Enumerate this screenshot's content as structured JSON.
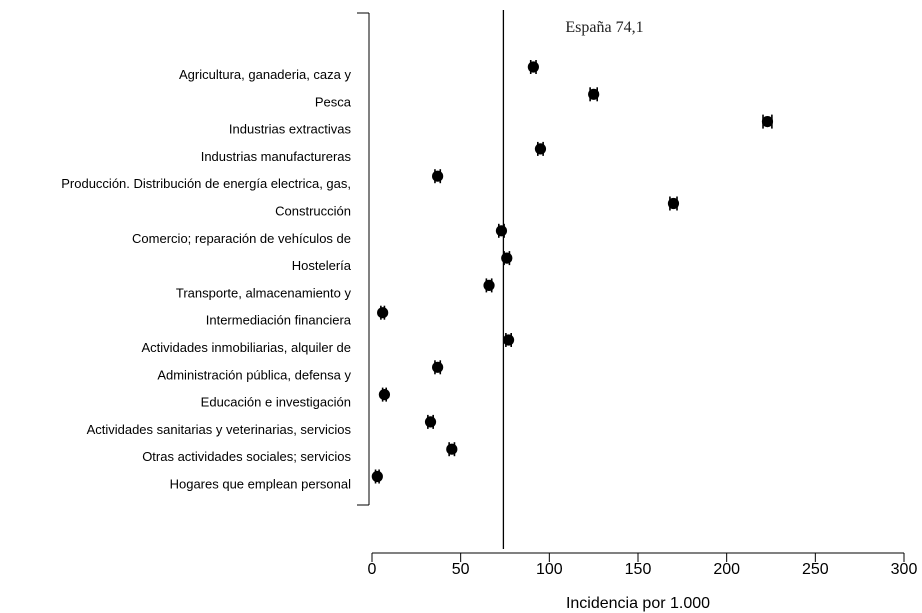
{
  "chart_data": {
    "type": "scatter",
    "orientation": "horizontal",
    "title": "",
    "xlabel": "Incidencia por 1.000",
    "ylabel": "",
    "xlim": [
      0,
      300
    ],
    "xticks": [
      0,
      50,
      100,
      150,
      200,
      250,
      300
    ],
    "reference_line": {
      "value": 74.1,
      "label": "España 74,1"
    },
    "categories": [
      "Agricultura, ganaderia, caza y",
      "Pesca",
      "Industrias extractivas",
      "Industrias manufactureras",
      "Producción. Distribución de energía electrica, gas,",
      "Construcción",
      "Comercio; reparación de vehículos de",
      "Hostelería",
      "Transporte, almacenamiento y",
      "Intermediación financiera",
      "Actividades inmobiliarias, alquiler de",
      "Administración pública, defensa y",
      "Educación e investigación",
      "Actividades sanitarias y veterinarias, servicios",
      "Otras actividades sociales; servicios",
      "Hogares que emplean personal"
    ],
    "series": [
      {
        "values": [
          91,
          125,
          223,
          95,
          37,
          170,
          73,
          76,
          66,
          6,
          77,
          37,
          7,
          33,
          45,
          3
        ],
        "ci_low": [
          89.5,
          123,
          220.5,
          93.5,
          35.5,
          168,
          71.5,
          74.5,
          64.5,
          5,
          75.5,
          35.5,
          6,
          31.5,
          43.5,
          2
        ],
        "ci_high": [
          92.5,
          127,
          225.5,
          96.5,
          38.5,
          172,
          74.5,
          77.5,
          67.5,
          7,
          78.5,
          38.5,
          8,
          34.5,
          46.5,
          4
        ]
      }
    ],
    "grid": false,
    "legend": "none"
  }
}
